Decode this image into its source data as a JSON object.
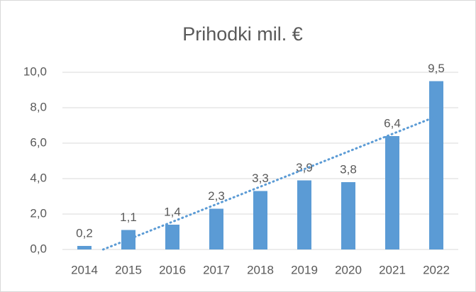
{
  "chart_data": {
    "type": "bar",
    "title": "Prihodki mil. €",
    "categories": [
      "2014",
      "2015",
      "2016",
      "2017",
      "2018",
      "2019",
      "2020",
      "2021",
      "2022"
    ],
    "values": [
      0.2,
      1.1,
      1.4,
      2.3,
      3.3,
      3.9,
      3.8,
      6.4,
      9.5
    ],
    "value_labels": [
      "0,2",
      "1,1",
      "1,4",
      "2,3",
      "3,3",
      "3,9",
      "3,8",
      "6,4",
      "9,5"
    ],
    "color": "#5b9bd5",
    "ylim": [
      0,
      10
    ],
    "yticks": [
      {
        "value": 0,
        "label": "0,0"
      },
      {
        "value": 2,
        "label": "2,0"
      },
      {
        "value": 4,
        "label": "4,0"
      },
      {
        "value": 6,
        "label": "6,0"
      },
      {
        "value": 8,
        "label": "8,0"
      },
      {
        "value": 10,
        "label": "10,0"
      }
    ],
    "grid": true,
    "trendline": "linear"
  }
}
